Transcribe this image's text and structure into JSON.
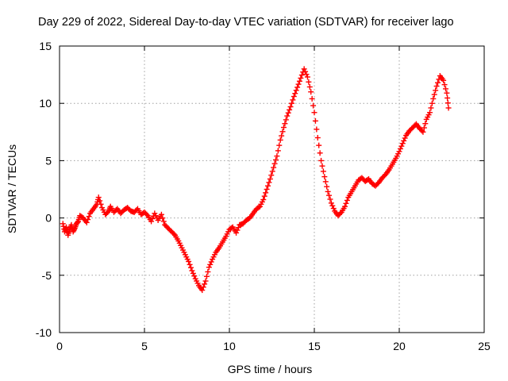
{
  "chart_data": {
    "type": "scatter",
    "title": "Day 229 of 2022, Sidereal Day-to-day VTEC variation (SDTVAR) for receiver lago",
    "xlabel": "GPS time / hours",
    "ylabel": "SDTVAR / TECUs",
    "xlim": [
      0,
      25
    ],
    "ylim": [
      -10,
      15
    ],
    "xticks": [
      0,
      5,
      10,
      15,
      20,
      25
    ],
    "yticks": [
      -10,
      -5,
      0,
      5,
      10,
      15
    ],
    "grid": true,
    "marker": "+",
    "color": "#ff0000",
    "series": [
      {
        "name": "SDTVAR",
        "x": [
          0.2,
          0.3,
          0.4,
          0.5,
          0.6,
          0.7,
          0.8,
          0.9,
          1.0,
          1.1,
          1.2,
          1.4,
          1.6,
          1.8,
          2.0,
          2.2,
          2.3,
          2.5,
          2.7,
          2.9,
          3.0,
          3.2,
          3.4,
          3.6,
          3.8,
          4.0,
          4.2,
          4.4,
          4.6,
          4.8,
          5.0,
          5.2,
          5.4,
          5.6,
          5.8,
          6.0,
          6.2,
          6.4,
          6.6,
          6.8,
          7.0,
          7.2,
          7.4,
          7.6,
          7.8,
          8.0,
          8.2,
          8.4,
          8.6,
          8.8,
          9.0,
          9.2,
          9.4,
          9.6,
          9.8,
          10.0,
          10.2,
          10.4,
          10.6,
          10.8,
          11.0,
          11.2,
          11.4,
          11.6,
          11.8,
          12.0,
          12.2,
          12.4,
          12.6,
          12.8,
          13.0,
          13.2,
          13.4,
          13.6,
          13.8,
          14.0,
          14.2,
          14.4,
          14.6,
          14.8,
          15.0,
          15.2,
          15.4,
          15.6,
          15.8,
          16.0,
          16.2,
          16.4,
          16.6,
          16.8,
          17.0,
          17.2,
          17.4,
          17.6,
          17.8,
          18.0,
          18.2,
          18.4,
          18.6,
          18.8,
          19.0,
          19.2,
          19.4,
          19.6,
          19.8,
          20.0,
          20.2,
          20.4,
          20.6,
          20.8,
          21.0,
          21.2,
          21.4,
          21.6,
          21.8,
          22.0,
          22.2,
          22.4,
          22.6,
          22.8,
          22.9
        ],
        "y": [
          -0.5,
          -1.2,
          -0.8,
          -1.5,
          -1.0,
          -0.6,
          -1.2,
          -0.9,
          -0.5,
          -0.3,
          0.2,
          0.0,
          -0.4,
          0.4,
          0.8,
          1.2,
          1.8,
          0.9,
          0.3,
          0.6,
          1.0,
          0.5,
          0.8,
          0.4,
          0.7,
          0.9,
          0.6,
          0.5,
          0.8,
          0.3,
          0.5,
          0.2,
          -0.3,
          0.4,
          -0.2,
          0.3,
          -0.6,
          -0.9,
          -1.2,
          -1.5,
          -2.0,
          -2.6,
          -3.2,
          -3.8,
          -4.6,
          -5.3,
          -5.9,
          -6.3,
          -5.5,
          -4.3,
          -3.6,
          -3.0,
          -2.6,
          -2.1,
          -1.6,
          -1.0,
          -0.8,
          -1.3,
          -0.6,
          -0.5,
          -0.2,
          0.0,
          0.4,
          0.8,
          1.0,
          1.6,
          2.5,
          3.4,
          4.4,
          5.4,
          6.8,
          7.9,
          8.9,
          9.7,
          10.6,
          11.4,
          12.2,
          13.0,
          12.3,
          11.0,
          9.2,
          7.0,
          5.0,
          3.6,
          2.3,
          1.3,
          0.6,
          0.2,
          0.5,
          1.0,
          1.8,
          2.3,
          2.8,
          3.3,
          3.5,
          3.2,
          3.4,
          3.0,
          2.8,
          3.1,
          3.5,
          3.8,
          4.2,
          4.7,
          5.2,
          5.8,
          6.5,
          7.2,
          7.6,
          7.9,
          8.2,
          7.8,
          7.5,
          8.6,
          9.2,
          10.4,
          11.5,
          12.4,
          12.0,
          10.9,
          9.6
        ]
      }
    ]
  }
}
